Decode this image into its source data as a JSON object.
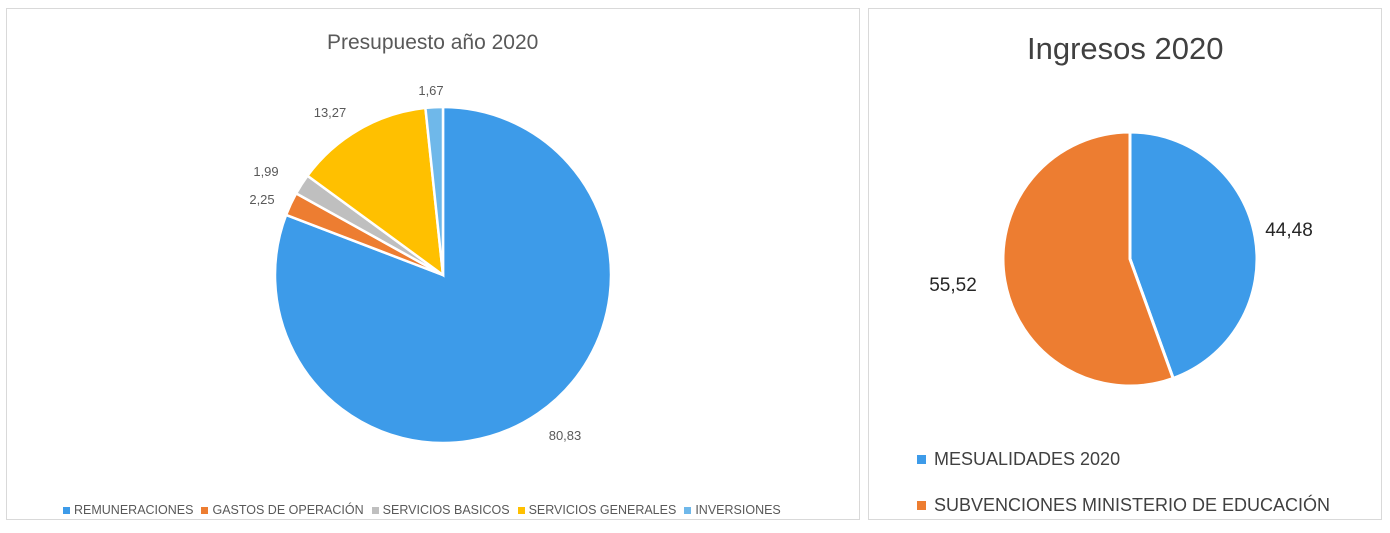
{
  "chart_data": [
    {
      "type": "pie",
      "title": "Presupuesto año 2020",
      "categories": [
        "REMUNERACIONES",
        "GASTOS DE OPERACIÓN",
        "SERVICIOS BASICOS",
        "SERVICIOS GENERALES",
        "INVERSIONES"
      ],
      "values": [
        80.83,
        2.25,
        1.99,
        13.27,
        1.67
      ],
      "data_labels": [
        "80,83",
        "2,25",
        "1,99",
        "13,27",
        "1,67"
      ],
      "colors": [
        "#3d9be9",
        "#ed7d31",
        "#bfbfbf",
        "#ffc000",
        "#6fb8ea"
      ],
      "legend_position": "bottom"
    },
    {
      "type": "pie",
      "title": "Ingresos 2020",
      "categories": [
        "MESUALIDADES 2020",
        "SUBVENCIONES MINISTERIO DE EDUCACIÓN"
      ],
      "values": [
        44.48,
        55.52
      ],
      "data_labels": [
        "44,48",
        "55,52"
      ],
      "colors": [
        "#3d9be9",
        "#ed7d31"
      ],
      "legend_position": "bottom"
    }
  ]
}
